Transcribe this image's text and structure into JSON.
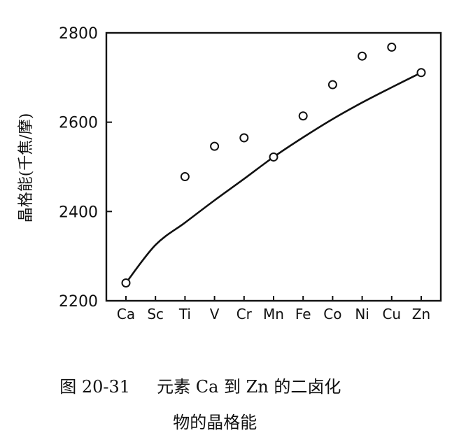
{
  "chart_data": {
    "type": "scatter",
    "ylabel": "晶格能(千焦/摩)",
    "categories": [
      "Ca",
      "Sc",
      "Ti",
      "V",
      "Cr",
      "Mn",
      "Fe",
      "Co",
      "Ni",
      "Cu",
      "Zn"
    ],
    "ylim": [
      2200,
      2800
    ],
    "yticks": [
      2200,
      2400,
      2600,
      2800
    ],
    "grid": false,
    "series": [
      {
        "marker": "open-circle",
        "points": [
          {
            "x": "Ca",
            "y": 2240
          },
          {
            "x": "Ti",
            "y": 2478
          },
          {
            "x": "V",
            "y": 2546
          },
          {
            "x": "Cr",
            "y": 2565
          },
          {
            "x": "Mn",
            "y": 2522
          },
          {
            "x": "Fe",
            "y": 2614
          },
          {
            "x": "Co",
            "y": 2684
          },
          {
            "x": "Ni",
            "y": 2748
          },
          {
            "x": "Cu",
            "y": 2768
          },
          {
            "x": "Zn",
            "y": 2711
          }
        ]
      },
      {
        "style": "curve",
        "points": [
          {
            "x": "Ca",
            "y": 2240
          },
          {
            "x": "Sc",
            "y": 2325
          },
          {
            "x": "Ti",
            "y": 2375
          },
          {
            "x": "V",
            "y": 2425
          },
          {
            "x": "Cr",
            "y": 2473
          },
          {
            "x": "Mn",
            "y": 2522
          },
          {
            "x": "Fe",
            "y": 2566
          },
          {
            "x": "Co",
            "y": 2607
          },
          {
            "x": "Ni",
            "y": 2644
          },
          {
            "x": "Cu",
            "y": 2678
          },
          {
            "x": "Zn",
            "y": 2711
          }
        ]
      }
    ]
  },
  "caption": {
    "number": "图 20-31",
    "line1": "元素 Ca 到 Zn 的二卤化",
    "line2": "物的晶格能"
  }
}
